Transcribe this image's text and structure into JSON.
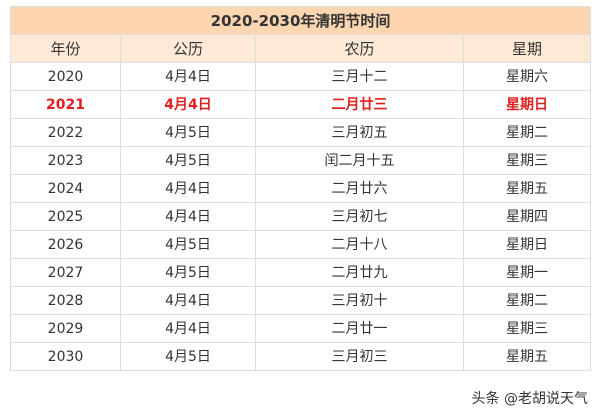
{
  "title": "2020-2030年清明节时间",
  "headers": [
    "年份",
    "公历",
    "农历",
    "星期"
  ],
  "rows": [
    [
      "2020",
      "4月4日",
      "三月十二",
      "星期六"
    ],
    [
      "2021",
      "4月4日",
      "二月廿三",
      "星期日"
    ],
    [
      "2022",
      "4月5日",
      "三月初五",
      "星期二"
    ],
    [
      "2023",
      "4月5日",
      "闰二月十五",
      "星期三"
    ],
    [
      "2024",
      "4月4日",
      "二月廿六",
      "星期五"
    ],
    [
      "2025",
      "4月4日",
      "三月初七",
      "星期四"
    ],
    [
      "2026",
      "4月5日",
      "二月十八",
      "星期日"
    ],
    [
      "2027",
      "4月5日",
      "二月廿九",
      "星期一"
    ],
    [
      "2028",
      "4月4日",
      "三月初十",
      "星期二"
    ],
    [
      "2029",
      "4月4日",
      "二月廿一",
      "星期三"
    ],
    [
      "2030",
      "4月5日",
      "三月初三",
      "星期五"
    ]
  ],
  "highlight_row": "2021",
  "highlight_color": "#e02020",
  "header_color": "#fbd6b0",
  "watermark": "头条 @老胡说天气"
}
